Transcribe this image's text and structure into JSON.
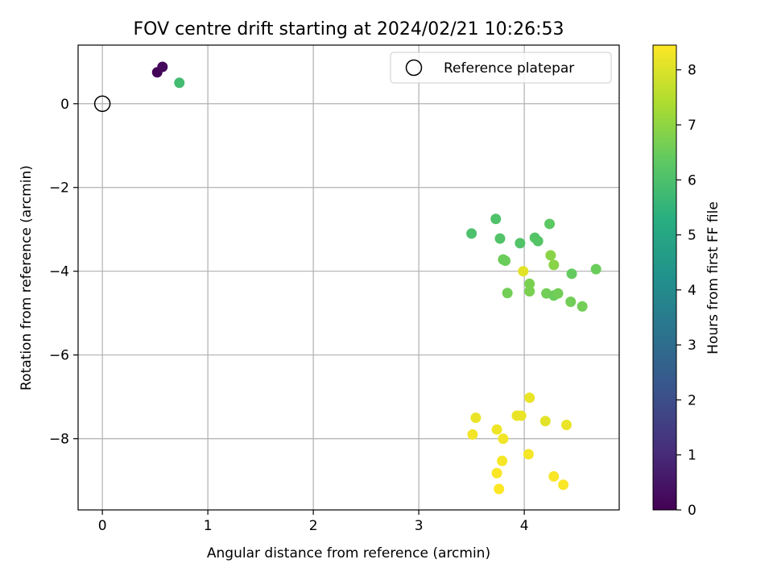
{
  "chart_data": {
    "type": "scatter",
    "title": "FOV centre drift starting at 2024/02/21 10:26:53",
    "xlabel": "Angular distance from reference (arcmin)",
    "ylabel": "Rotation from reference (arcmin)",
    "xlim": [
      -0.23,
      4.9
    ],
    "ylim": [
      -9.7,
      1.4
    ],
    "xticks": [
      0,
      1,
      2,
      3,
      4
    ],
    "yticks": [
      0,
      -2,
      -4,
      -6,
      -8
    ],
    "xtick_labels": [
      "0",
      "1",
      "2",
      "3",
      "4"
    ],
    "ytick_labels": [
      "0",
      "−2",
      "−4",
      "−6",
      "−8"
    ],
    "grid": true,
    "legend": {
      "position": "top-right",
      "entries": [
        "Reference platepar"
      ]
    },
    "reference_point": {
      "x": 0,
      "y": 0
    },
    "colorbar": {
      "label": "Hours from first FF file",
      "min": 0,
      "max": 8.45,
      "ticks": [
        0,
        1,
        2,
        3,
        4,
        5,
        6,
        7,
        8
      ],
      "tick_labels": [
        "0",
        "1",
        "2",
        "3",
        "4",
        "5",
        "6",
        "7",
        "8"
      ],
      "colormap": "viridis"
    },
    "points": [
      {
        "x": 0.52,
        "y": 0.75,
        "hours": 0.05
      },
      {
        "x": 0.57,
        "y": 0.88,
        "hours": 0.2
      },
      {
        "x": 0.73,
        "y": 0.5,
        "hours": 5.8
      },
      {
        "x": 3.73,
        "y": -2.75,
        "hours": 6.05
      },
      {
        "x": 4.24,
        "y": -2.87,
        "hours": 6.3
      },
      {
        "x": 3.5,
        "y": -3.1,
        "hours": 6.0
      },
      {
        "x": 3.77,
        "y": -3.22,
        "hours": 6.1
      },
      {
        "x": 4.1,
        "y": -3.2,
        "hours": 6.15
      },
      {
        "x": 4.13,
        "y": -3.28,
        "hours": 6.15
      },
      {
        "x": 3.96,
        "y": -3.33,
        "hours": 6.1
      },
      {
        "x": 4.25,
        "y": -3.62,
        "hours": 6.9
      },
      {
        "x": 3.8,
        "y": -3.72,
        "hours": 6.5
      },
      {
        "x": 3.82,
        "y": -3.75,
        "hours": 6.5
      },
      {
        "x": 4.28,
        "y": -3.85,
        "hours": 6.9
      },
      {
        "x": 4.68,
        "y": -3.95,
        "hours": 6.5
      },
      {
        "x": 3.99,
        "y": -4.0,
        "hours": 8.1
      },
      {
        "x": 4.45,
        "y": -4.06,
        "hours": 6.4
      },
      {
        "x": 4.05,
        "y": -4.3,
        "hours": 6.7
      },
      {
        "x": 4.05,
        "y": -4.48,
        "hours": 6.7
      },
      {
        "x": 3.84,
        "y": -4.52,
        "hours": 6.6
      },
      {
        "x": 4.21,
        "y": -4.53,
        "hours": 6.6
      },
      {
        "x": 4.28,
        "y": -4.58,
        "hours": 6.5
      },
      {
        "x": 4.32,
        "y": -4.53,
        "hours": 6.6
      },
      {
        "x": 4.44,
        "y": -4.73,
        "hours": 6.6
      },
      {
        "x": 4.55,
        "y": -4.84,
        "hours": 6.6
      },
      {
        "x": 4.05,
        "y": -7.02,
        "hours": 8.2
      },
      {
        "x": 3.54,
        "y": -7.5,
        "hours": 8.2
      },
      {
        "x": 3.93,
        "y": -7.45,
        "hours": 8.2
      },
      {
        "x": 3.97,
        "y": -7.45,
        "hours": 8.2
      },
      {
        "x": 4.2,
        "y": -7.58,
        "hours": 8.1
      },
      {
        "x": 4.4,
        "y": -7.67,
        "hours": 8.2
      },
      {
        "x": 3.74,
        "y": -7.78,
        "hours": 8.25
      },
      {
        "x": 3.51,
        "y": -7.9,
        "hours": 8.3
      },
      {
        "x": 3.8,
        "y": -8.0,
        "hours": 8.3
      },
      {
        "x": 4.04,
        "y": -8.37,
        "hours": 8.35
      },
      {
        "x": 3.79,
        "y": -8.53,
        "hours": 8.35
      },
      {
        "x": 3.74,
        "y": -8.82,
        "hours": 8.4
      },
      {
        "x": 4.28,
        "y": -8.9,
        "hours": 8.4
      },
      {
        "x": 4.37,
        "y": -9.1,
        "hours": 8.4
      },
      {
        "x": 3.76,
        "y": -9.2,
        "hours": 8.45
      }
    ]
  }
}
